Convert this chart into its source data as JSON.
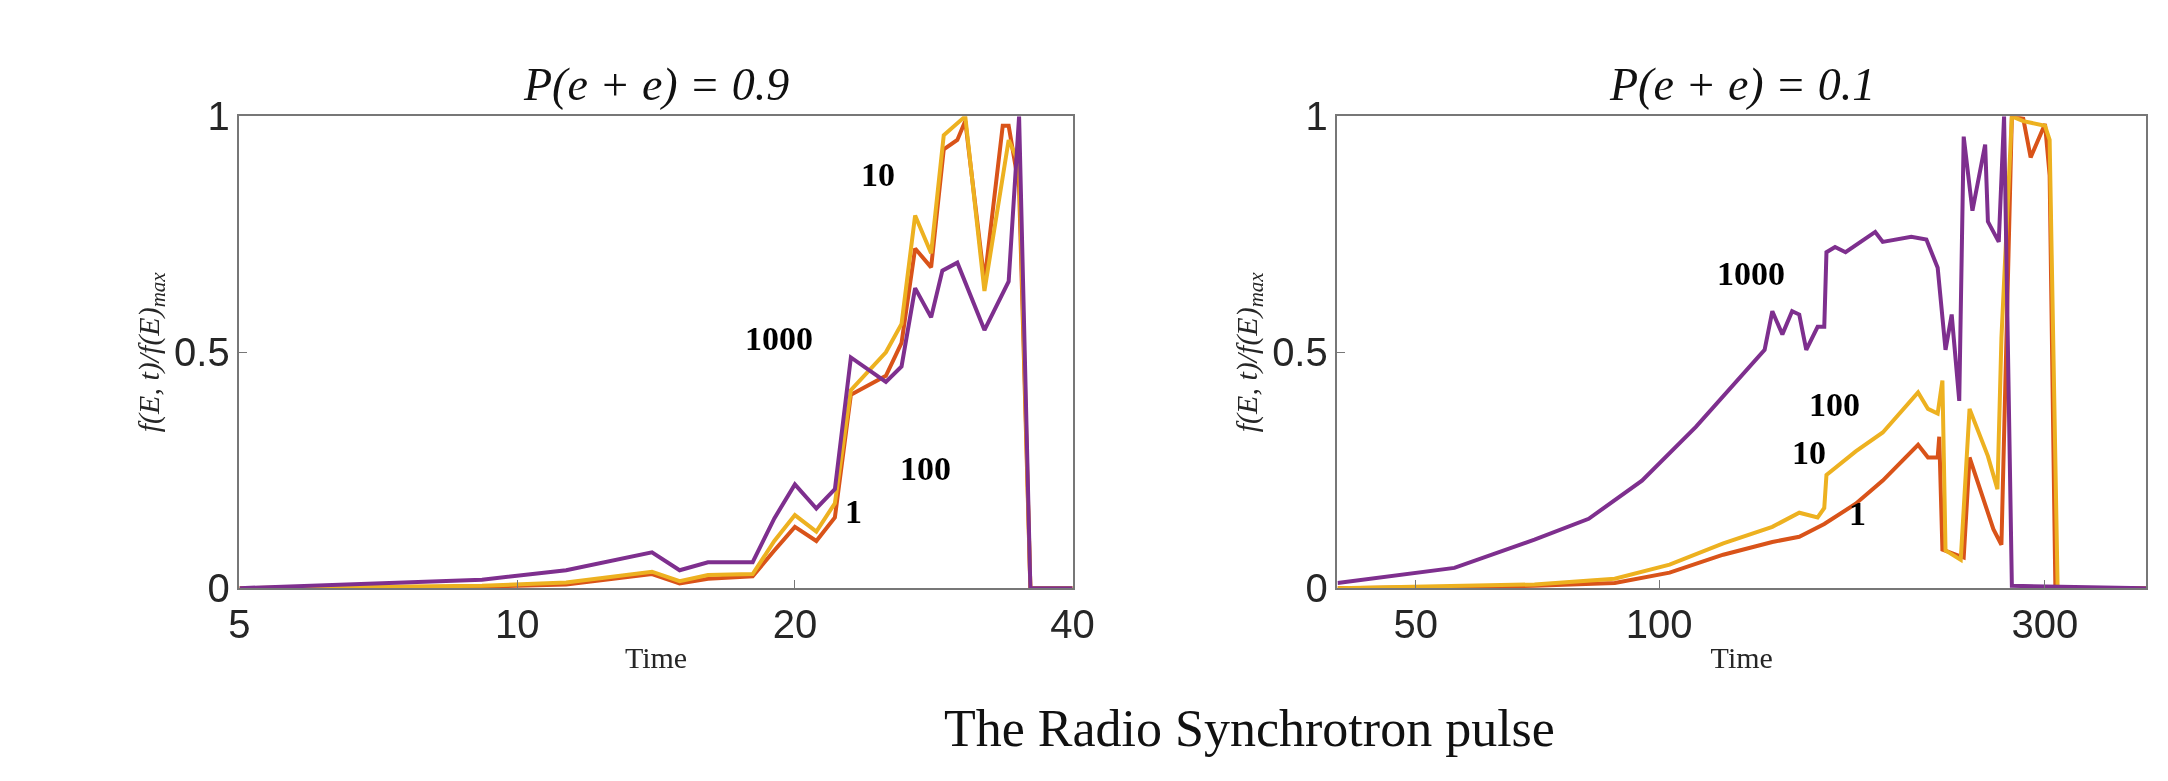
{
  "chart_data": [
    {
      "type": "line",
      "title": "P(e + e) = 0.9",
      "xlabel": "Time",
      "ylabel": "f(E, t)/f(E)$_{max}$",
      "log": "x",
      "xlim": [
        5,
        40
      ],
      "xticks": [
        5,
        10,
        20,
        40
      ],
      "ylim": [
        0,
        1
      ],
      "yticks": [
        0,
        {
          "value": 0.5,
          "label": "0.5"
        },
        1
      ],
      "marker": "none",
      "line_style": "solid",
      "series": [
        {
          "color": "#d95319",
          "x": [
            5,
            9.16,
            11.3,
            14,
            15,
            16.1,
            18,
            19,
            20,
            21.1,
            22.1,
            23,
            25.1,
            26.1,
            27,
            28.1,
            29,
            30,
            30.6,
            32.1,
            33.6,
            34.1,
            35,
            36,
            40
          ],
          "values": [
            0,
            0.003,
            0.008,
            0.03,
            0.01,
            0.02,
            0.025,
            0.08,
            0.13,
            0.1,
            0.15,
            0.41,
            0.45,
            0.52,
            0.72,
            0.68,
            0.93,
            0.95,
            0.99,
            0.65,
            0.98,
            0.98,
            0.85,
            0,
            0
          ]
        },
        {
          "color": "#edb120",
          "x": [
            5,
            9.16,
            11.3,
            14,
            15,
            16.1,
            18,
            19,
            20,
            21.1,
            22.1,
            23,
            25.1,
            26.1,
            27,
            28.1,
            29,
            30.6,
            32.1,
            34.1,
            35,
            36,
            40
          ],
          "values": [
            0,
            0.005,
            0.012,
            0.035,
            0.015,
            0.028,
            0.03,
            0.1,
            0.155,
            0.12,
            0.18,
            0.42,
            0.5,
            0.56,
            0.79,
            0.71,
            0.96,
            1.0,
            0.63,
            0.95,
            0.9,
            0,
            0
          ]
        },
        {
          "color": "#7e2f8e",
          "x": [
            5,
            9.16,
            11.3,
            14,
            15,
            16.1,
            18,
            19,
            20,
            21.1,
            22.1,
            23,
            25.1,
            26.1,
            27,
            28.1,
            28.9,
            30,
            32.1,
            34.1,
            35,
            36,
            40
          ],
          "values": [
            0,
            0.018,
            0.038,
            0.076,
            0.038,
            0.055,
            0.055,
            0.148,
            0.22,
            0.169,
            0.21,
            0.489,
            0.437,
            0.47,
            0.636,
            0.574,
            0.673,
            0.69,
            0.547,
            0.65,
            1.0,
            0,
            0
          ]
        }
      ],
      "annotations": [
        "10",
        "1000",
        "100",
        "1",
        "The Radio Synchrotron pulse"
      ]
    },
    {
      "type": "line",
      "title": "P(e + e) = 0.1",
      "xlabel": "Time",
      "ylabel": "f(E, t)/f(E)$_{max}$",
      "log": "x",
      "xlim": [
        40,
        400
      ],
      "xticks": [
        50,
        100,
        300
      ],
      "ylim": [
        0,
        1
      ],
      "yticks": [
        0,
        {
          "value": 0.5,
          "label": "0.5"
        },
        1
      ],
      "marker": "none",
      "line_style": "solid",
      "series": [
        {
          "color": "#d95319",
          "x": [
            40,
            70.1,
            88.1,
            103,
            120,
            138,
            149,
            160,
            175,
            189,
            209,
            215,
            221,
            222,
            224,
            238,
            242,
            259,
            265,
            273,
            282,
            288,
            300,
            304,
            309,
            400
          ],
          "values": [
            0,
            0.005,
            0.011,
            0.033,
            0.071,
            0.098,
            0.109,
            0.136,
            0.179,
            0.228,
            0.304,
            0.277,
            0.277,
            0.321,
            0.082,
            0.065,
            0.277,
            0.125,
            0.092,
            1.0,
            0.995,
            0.913,
            0.984,
            0.875,
            0,
            0
          ]
        },
        {
          "color": "#edb120",
          "x": [
            40,
            70.1,
            88.1,
            103,
            120,
            138,
            149,
            157,
            160,
            161,
            175,
            189,
            209,
            215,
            221,
            224,
            226,
            236,
            242,
            255,
            262,
            265,
            273,
            282,
            300,
            304,
            311,
            400
          ],
          "values": [
            0,
            0.008,
            0.02,
            0.05,
            0.095,
            0.13,
            0.16,
            0.15,
            0.17,
            0.24,
            0.29,
            0.33,
            0.415,
            0.38,
            0.37,
            0.44,
            0.08,
            0.06,
            0.38,
            0.28,
            0.21,
            0.53,
            1.0,
            0.99,
            0.98,
            0.95,
            0,
            0
          ]
        },
        {
          "color": "#7e2f8e",
          "x": [
            40,
            55.8,
            70.1,
            81.8,
            95.2,
            111,
            135,
            138,
            142,
            146,
            149,
            152,
            157,
            160,
            161,
            165,
            170,
            185,
            189,
            205,
            214,
            221,
            226,
            230,
            235,
            238,
            244,
            253,
            255,
            263,
            267,
            273,
            400
          ],
          "values": [
            0.011,
            0.043,
            0.103,
            0.147,
            0.228,
            0.342,
            0.505,
            0.587,
            0.538,
            0.587,
            0.58,
            0.505,
            0.554,
            0.554,
            0.712,
            0.723,
            0.712,
            0.755,
            0.734,
            0.745,
            0.739,
            0.679,
            0.505,
            0.58,
            0.397,
            0.957,
            0.8,
            0.94,
            0.777,
            0.734,
            1.0,
            0.005,
            0
          ]
        }
      ],
      "annotations": [
        "1000",
        "100",
        "10",
        "1"
      ]
    }
  ]
}
